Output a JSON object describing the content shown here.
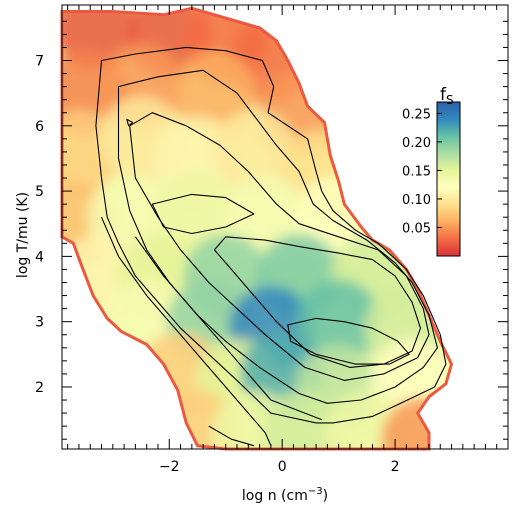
{
  "chart_data": {
    "type": "heatmap",
    "title": "",
    "xlabel": "log n (cm",
    "xlabel_exp": "−3",
    "xlabel_close": ")",
    "ylabel": "log T/mu (K)",
    "xlim": [
      -3.9,
      4.0
    ],
    "ylim": [
      1.05,
      7.85
    ],
    "x_ticks": [
      -2,
      0,
      2
    ],
    "x_tick_labels": [
      "−2",
      "0",
      "2"
    ],
    "y_ticks": [
      2,
      3,
      4,
      5,
      6,
      7
    ],
    "y_tick_labels": [
      "2",
      "3",
      "4",
      "5",
      "6",
      "7"
    ],
    "colorbar": {
      "title": "f",
      "title_sub": "S",
      "range": [
        0.0,
        0.27
      ],
      "ticks": [
        0.05,
        0.1,
        0.15,
        0.2,
        0.25
      ],
      "tick_labels": [
        "0.05",
        "0.10",
        "0.15",
        "0.20",
        "0.25"
      ],
      "colormap": "Spectral",
      "colors": [
        "#d7303a",
        "#f46d43",
        "#fdae61",
        "#fee08b",
        "#ffffbf",
        "#e6f598",
        "#abdda4",
        "#66c2a5",
        "#3288bd",
        "#2b5fa8"
      ]
    },
    "region_boundary": [
      [
        -3.9,
        7.75
      ],
      [
        -3.0,
        7.75
      ],
      [
        -2.1,
        7.7
      ],
      [
        -1.6,
        7.8
      ],
      [
        -1.0,
        7.65
      ],
      [
        -0.4,
        7.5
      ],
      [
        -0.1,
        7.3
      ],
      [
        0.1,
        7.0
      ],
      [
        0.3,
        6.65
      ],
      [
        0.45,
        6.3
      ],
      [
        0.75,
        6.05
      ],
      [
        0.85,
        5.55
      ],
      [
        1.0,
        5.15
      ],
      [
        1.1,
        4.8
      ],
      [
        1.4,
        4.45
      ],
      [
        1.6,
        4.25
      ],
      [
        1.9,
        4.1
      ],
      [
        2.2,
        3.8
      ],
      [
        2.4,
        3.5
      ],
      [
        2.6,
        3.1
      ],
      [
        2.8,
        2.7
      ],
      [
        3.0,
        2.35
      ],
      [
        2.9,
        2.05
      ],
      [
        2.6,
        1.85
      ],
      [
        2.4,
        1.6
      ],
      [
        2.6,
        1.3
      ],
      [
        2.6,
        1.05
      ],
      [
        1.2,
        1.05
      ],
      [
        -0.6,
        1.05
      ],
      [
        -1.0,
        1.05
      ],
      [
        -1.5,
        1.1
      ],
      [
        -1.7,
        1.45
      ],
      [
        -1.85,
        1.95
      ],
      [
        -2.1,
        2.35
      ],
      [
        -2.4,
        2.65
      ],
      [
        -2.85,
        2.85
      ],
      [
        -3.1,
        3.05
      ],
      [
        -3.35,
        3.4
      ],
      [
        -3.55,
        3.85
      ],
      [
        -3.7,
        4.2
      ],
      [
        -3.9,
        4.3
      ]
    ],
    "color_field": [
      {
        "x": -3.3,
        "y": 7.5,
        "f": 0.02
      },
      {
        "x": -2.0,
        "y": 7.4,
        "f": 0.02
      },
      {
        "x": -1.0,
        "y": 7.3,
        "f": 0.03
      },
      {
        "x": -0.2,
        "y": 7.0,
        "f": 0.03
      },
      {
        "x": -3.5,
        "y": 6.5,
        "f": 0.04
      },
      {
        "x": -2.5,
        "y": 6.6,
        "f": 0.05
      },
      {
        "x": -1.2,
        "y": 6.5,
        "f": 0.06
      },
      {
        "x": 0.3,
        "y": 6.2,
        "f": 0.05
      },
      {
        "x": -3.6,
        "y": 5.6,
        "f": 0.08
      },
      {
        "x": -2.5,
        "y": 5.8,
        "f": 0.1
      },
      {
        "x": -1.5,
        "y": 5.5,
        "f": 0.11
      },
      {
        "x": -0.5,
        "y": 5.6,
        "f": 0.1
      },
      {
        "x": 0.7,
        "y": 5.3,
        "f": 0.09
      },
      {
        "x": -3.7,
        "y": 4.5,
        "f": 0.07
      },
      {
        "x": -2.7,
        "y": 4.6,
        "f": 0.13
      },
      {
        "x": -1.5,
        "y": 4.7,
        "f": 0.14
      },
      {
        "x": -0.3,
        "y": 4.6,
        "f": 0.13
      },
      {
        "x": 1.0,
        "y": 4.6,
        "f": 0.12
      },
      {
        "x": -3.2,
        "y": 3.7,
        "f": 0.11
      },
      {
        "x": -2.2,
        "y": 3.7,
        "f": 0.15
      },
      {
        "x": -1.0,
        "y": 3.7,
        "f": 0.19
      },
      {
        "x": 0.3,
        "y": 3.7,
        "f": 0.2
      },
      {
        "x": 1.6,
        "y": 3.7,
        "f": 0.16
      },
      {
        "x": -2.4,
        "y": 3.0,
        "f": 0.13
      },
      {
        "x": -1.3,
        "y": 3.0,
        "f": 0.19
      },
      {
        "x": -0.2,
        "y": 2.9,
        "f": 0.24
      },
      {
        "x": 1.0,
        "y": 3.0,
        "f": 0.21
      },
      {
        "x": 2.2,
        "y": 2.9,
        "f": 0.16
      },
      {
        "x": -1.8,
        "y": 2.2,
        "f": 0.08
      },
      {
        "x": -0.8,
        "y": 2.1,
        "f": 0.15
      },
      {
        "x": 0.0,
        "y": 2.2,
        "f": 0.22
      },
      {
        "x": 1.0,
        "y": 2.0,
        "f": 0.17
      },
      {
        "x": 2.3,
        "y": 2.1,
        "f": 0.12
      },
      {
        "x": -1.5,
        "y": 1.3,
        "f": 0.08
      },
      {
        "x": -0.5,
        "y": 1.3,
        "f": 0.14
      },
      {
        "x": 0.4,
        "y": 1.3,
        "f": 0.16
      },
      {
        "x": 1.5,
        "y": 1.3,
        "f": 0.14
      },
      {
        "x": 2.5,
        "y": 1.2,
        "f": 0.05
      }
    ],
    "contours": [
      [
        [
          -3.2,
          7.0
        ],
        [
          -2.6,
          7.1
        ],
        [
          -1.7,
          7.2
        ],
        [
          -1.0,
          7.15
        ],
        [
          -0.35,
          7.0
        ],
        [
          -0.15,
          6.6
        ],
        [
          -0.25,
          6.2
        ],
        [
          0.45,
          5.8
        ],
        [
          0.6,
          5.3
        ],
        [
          0.7,
          5.0
        ],
        [
          0.9,
          4.7
        ],
        [
          1.3,
          4.4
        ],
        [
          1.7,
          4.2
        ],
        [
          2.2,
          3.8
        ],
        [
          2.5,
          3.4
        ],
        [
          2.8,
          2.8
        ],
        [
          2.9,
          2.35
        ],
        [
          2.7,
          2.0
        ],
        [
          2.1,
          1.75
        ],
        [
          1.6,
          1.55
        ],
        [
          0.9,
          1.45
        ],
        [
          0.6,
          1.45
        ],
        [
          -0.2,
          1.6
        ],
        [
          -0.8,
          2.1
        ],
        [
          -1.3,
          2.5
        ],
        [
          -1.8,
          2.9
        ],
        [
          -2.2,
          3.3
        ],
        [
          -2.6,
          3.7
        ],
        [
          -2.9,
          4.2
        ],
        [
          -3.1,
          4.6
        ],
        [
          -3.2,
          5.2
        ],
        [
          -3.3,
          6.0
        ],
        [
          -3.2,
          7.0
        ]
      ],
      [
        [
          -2.9,
          6.6
        ],
        [
          -2.2,
          6.75
        ],
        [
          -1.4,
          6.85
        ],
        [
          -0.8,
          6.5
        ],
        [
          -0.45,
          6.1
        ],
        [
          -0.1,
          5.7
        ],
        [
          0.3,
          5.3
        ],
        [
          0.55,
          4.8
        ],
        [
          0.9,
          4.55
        ],
        [
          1.5,
          4.25
        ],
        [
          2.0,
          3.9
        ],
        [
          2.3,
          3.6
        ],
        [
          2.6,
          3.1
        ],
        [
          2.75,
          2.6
        ],
        [
          2.5,
          2.3
        ],
        [
          2.0,
          2.0
        ],
        [
          1.4,
          1.8
        ],
        [
          0.8,
          1.75
        ],
        [
          0.3,
          1.9
        ],
        [
          -0.4,
          2.3
        ],
        [
          -1.0,
          2.7
        ],
        [
          -1.5,
          3.1
        ],
        [
          -2.0,
          3.6
        ],
        [
          -2.4,
          4.1
        ],
        [
          -2.7,
          4.7
        ],
        [
          -2.9,
          5.5
        ],
        [
          -2.9,
          6.6
        ]
      ],
      [
        [
          -2.7,
          6.0
        ],
        [
          -2.3,
          6.2
        ],
        [
          -1.7,
          6.0
        ],
        [
          -1.1,
          5.7
        ],
        [
          -0.6,
          5.3
        ],
        [
          -0.1,
          4.8
        ],
        [
          0.3,
          4.5
        ],
        [
          1.0,
          4.3
        ],
        [
          1.7,
          4.1
        ],
        [
          2.2,
          3.7
        ],
        [
          2.5,
          3.2
        ],
        [
          2.6,
          2.8
        ],
        [
          2.4,
          2.45
        ],
        [
          1.8,
          2.2
        ],
        [
          1.1,
          2.1
        ],
        [
          0.4,
          2.3
        ],
        [
          -0.3,
          2.8
        ],
        [
          -0.8,
          3.2
        ],
        [
          -1.3,
          3.6
        ],
        [
          -1.8,
          4.1
        ],
        [
          -2.2,
          4.6
        ],
        [
          -2.6,
          5.2
        ],
        [
          -2.7,
          6.0
        ]
      ],
      [
        [
          -1.0,
          4.3
        ],
        [
          -0.3,
          4.25
        ],
        [
          0.3,
          4.15
        ],
        [
          1.0,
          4.05
        ],
        [
          1.6,
          3.95
        ],
        [
          2.0,
          3.7
        ],
        [
          2.3,
          3.3
        ],
        [
          2.45,
          2.9
        ],
        [
          2.3,
          2.55
        ],
        [
          1.8,
          2.35
        ],
        [
          1.2,
          2.3
        ],
        [
          0.5,
          2.5
        ],
        [
          -0.1,
          3.0
        ],
        [
          -0.5,
          3.4
        ],
        [
          -0.9,
          3.8
        ],
        [
          -1.2,
          4.1
        ],
        [
          -1.0,
          4.3
        ]
      ],
      [
        [
          0.1,
          2.95
        ],
        [
          0.6,
          3.05
        ],
        [
          1.1,
          3.0
        ],
        [
          1.6,
          2.9
        ],
        [
          2.05,
          2.7
        ],
        [
          2.25,
          2.5
        ],
        [
          1.9,
          2.35
        ],
        [
          1.3,
          2.35
        ],
        [
          0.6,
          2.5
        ],
        [
          0.15,
          2.7
        ],
        [
          0.1,
          2.95
        ]
      ],
      [
        [
          -2.3,
          4.8
        ],
        [
          -1.6,
          4.95
        ],
        [
          -1.0,
          4.9
        ],
        [
          -0.5,
          4.65
        ],
        [
          -1.0,
          4.45
        ],
        [
          -1.6,
          4.35
        ],
        [
          -2.1,
          4.45
        ],
        [
          -2.3,
          4.8
        ]
      ],
      [
        [
          -3.2,
          4.6
        ],
        [
          -2.9,
          4.0
        ],
        [
          -2.4,
          3.4
        ],
        [
          -1.9,
          2.9
        ],
        [
          -1.4,
          2.4
        ],
        [
          -1.0,
          2.0
        ],
        [
          -0.6,
          1.6
        ],
        [
          -0.3,
          1.3
        ],
        [
          -0.2,
          1.1
        ]
      ],
      [
        [
          -2.6,
          4.3
        ],
        [
          -2.1,
          3.7
        ],
        [
          -1.6,
          3.2
        ],
        [
          -1.1,
          2.7
        ],
        [
          -0.6,
          2.2
        ],
        [
          -0.2,
          1.8
        ],
        [
          0.4,
          1.6
        ],
        [
          0.7,
          1.5
        ]
      ],
      [
        [
          -1.3,
          1.4
        ],
        [
          -0.9,
          1.2
        ],
        [
          -0.5,
          1.1
        ]
      ],
      [
        [
          -2.75,
          6.1
        ],
        [
          -2.65,
          6.05
        ],
        [
          -2.72,
          6.0
        ],
        [
          -2.75,
          6.1
        ]
      ]
    ]
  }
}
